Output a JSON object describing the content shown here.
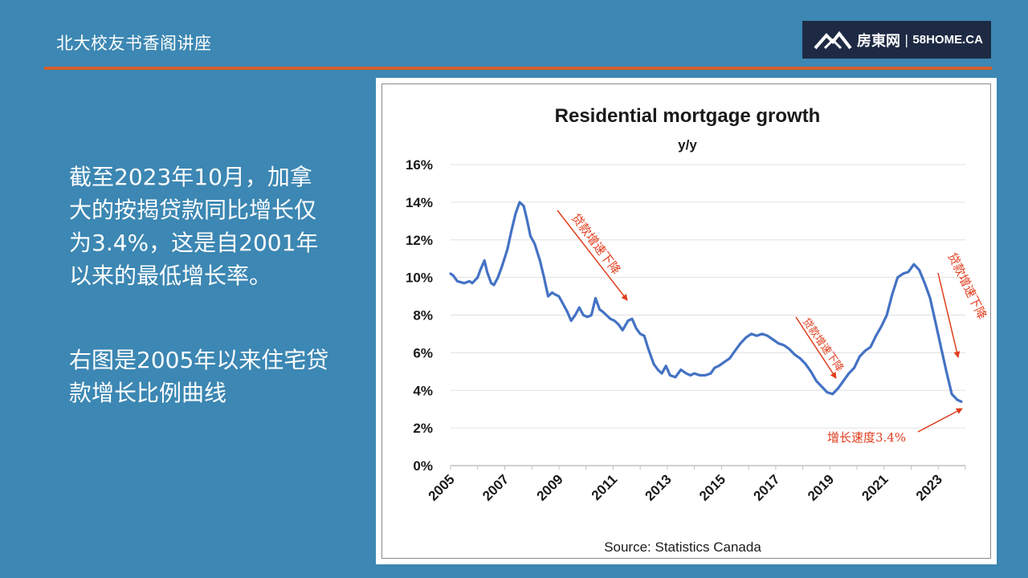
{
  "header": {
    "title": "北大校友书香阁讲座",
    "logo_cn": "房東网",
    "logo_sep": "|",
    "logo_en": "58HOME.CA"
  },
  "body": {
    "para1": "截至2023年10月，加拿大的按揭贷款同比增长仅为3.4%，这是自2001年以来的最低增长率。",
    "para2": "右图是2005年以来住宅贷款增长比例曲线"
  },
  "colors": {
    "background": "#3c87b3",
    "accent_line": "#d2602e",
    "series": "#4472c4",
    "annotation": "#e03c1c",
    "logo_bg": "#1e2a44"
  },
  "chart_data": {
    "type": "line",
    "title": "Residential mortgage growth",
    "subtitle": "y/y",
    "source": "Source:  Statistics Canada",
    "xlabel": "",
    "ylabel": "",
    "xlim": [
      2005,
      2024
    ],
    "ylim": [
      0,
      16
    ],
    "x_ticks": [
      "2005",
      "2007",
      "2009",
      "2011",
      "2013",
      "2015",
      "2017",
      "2019",
      "2021",
      "2023"
    ],
    "y_ticks": [
      "0%",
      "2%",
      "4%",
      "6%",
      "8%",
      "10%",
      "12%",
      "14%",
      "16%"
    ],
    "grid": true,
    "legend": "none",
    "series": [
      {
        "x": [
          2005.0,
          2005.1,
          2005.25,
          2005.5,
          2005.7,
          2005.8,
          2006.0,
          2006.1,
          2006.25,
          2006.35,
          2006.5,
          2006.6,
          2006.75,
          2006.9,
          2007.1,
          2007.25,
          2007.4,
          2007.55,
          2007.7,
          2007.8,
          2007.95,
          2008.1,
          2008.3,
          2008.45,
          2008.6,
          2008.75,
          2008.85,
          2009.0,
          2009.15,
          2009.3,
          2009.45,
          2009.6,
          2009.75,
          2009.9,
          2010.05,
          2010.2,
          2010.35,
          2010.5,
          2010.6,
          2010.75,
          2010.9,
          2011.05,
          2011.2,
          2011.35,
          2011.55,
          2011.7,
          2011.85,
          2012.0,
          2012.15,
          2012.3,
          2012.5,
          2012.65,
          2012.8,
          2012.95,
          2013.1,
          2013.3,
          2013.5,
          2013.7,
          2013.85,
          2014.0,
          2014.2,
          2014.4,
          2014.6,
          2014.75,
          2014.9,
          2015.1,
          2015.3,
          2015.5,
          2015.7,
          2015.9,
          2016.1,
          2016.3,
          2016.5,
          2016.7,
          2016.9,
          2017.1,
          2017.3,
          2017.5,
          2017.7,
          2017.9,
          2018.1,
          2018.3,
          2018.5,
          2018.7,
          2018.9,
          2019.1,
          2019.3,
          2019.5,
          2019.7,
          2019.9,
          2020.1,
          2020.3,
          2020.5,
          2020.7,
          2020.9,
          2021.1,
          2021.3,
          2021.5,
          2021.7,
          2021.9,
          2022.1,
          2022.3,
          2022.5,
          2022.7,
          2022.9,
          2023.1,
          2023.3,
          2023.5,
          2023.7,
          2023.85
        ],
        "values": [
          10.2,
          10.1,
          9.8,
          9.7,
          9.8,
          9.7,
          10.0,
          10.4,
          10.9,
          10.3,
          9.7,
          9.6,
          10.0,
          10.6,
          11.5,
          12.5,
          13.4,
          14.0,
          13.8,
          13.2,
          12.2,
          11.8,
          10.9,
          10.0,
          9.0,
          9.2,
          9.1,
          9.0,
          8.6,
          8.2,
          7.7,
          8.0,
          8.4,
          8.0,
          7.9,
          8.0,
          8.9,
          8.3,
          8.2,
          8.0,
          7.8,
          7.7,
          7.5,
          7.2,
          7.7,
          7.8,
          7.3,
          7.0,
          6.9,
          6.2,
          5.4,
          5.1,
          4.9,
          5.3,
          4.8,
          4.7,
          5.1,
          4.9,
          4.8,
          4.9,
          4.8,
          4.8,
          4.9,
          5.2,
          5.3,
          5.5,
          5.7,
          6.1,
          6.5,
          6.8,
          7.0,
          6.9,
          7.0,
          6.9,
          6.7,
          6.5,
          6.4,
          6.2,
          5.9,
          5.7,
          5.4,
          5.0,
          4.5,
          4.2,
          3.9,
          3.8,
          4.1,
          4.5,
          4.9,
          5.2,
          5.8,
          6.1,
          6.3,
          6.9,
          7.4,
          8.0,
          9.1,
          10.0,
          10.2,
          10.3,
          10.7,
          10.4,
          9.7,
          8.9,
          7.6,
          6.3,
          5.0,
          3.8,
          3.5,
          3.4
        ]
      }
    ],
    "annotations": [
      {
        "text": "贷款增速下降"
      },
      {
        "text": "贷款增速下降"
      },
      {
        "text": "贷款增速下降"
      },
      {
        "text": "增长速度3.4%"
      }
    ]
  }
}
